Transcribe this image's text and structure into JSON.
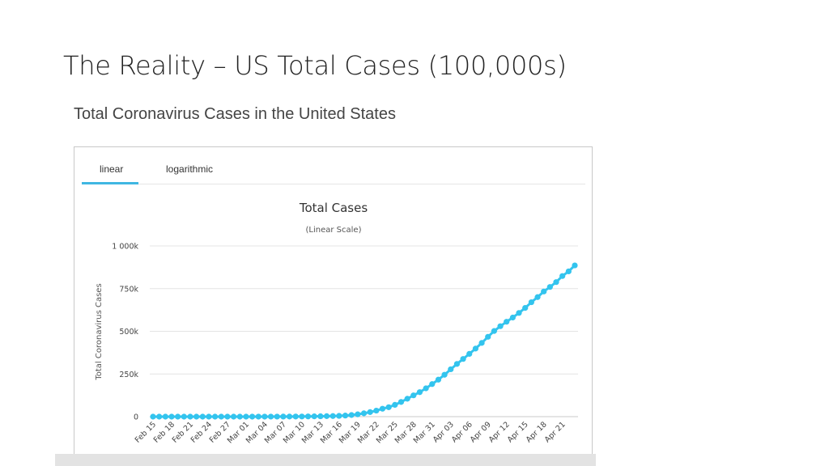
{
  "slide": {
    "title": "The Reality – US Total Cases (100,000s)"
  },
  "embed": {
    "heading": "Total Coronavirus Cases in the United States",
    "tabs": [
      {
        "label": "linear",
        "active": true
      },
      {
        "label": "logarithmic",
        "active": false
      }
    ]
  },
  "chart_data": {
    "type": "line",
    "title": "Total Cases",
    "subtitle": "(Linear Scale)",
    "ylabel": "Total Coronavirus Cases",
    "xlabel": "",
    "ylim": [
      0,
      1000000
    ],
    "y_ticks": [
      0,
      250000,
      500000,
      750000,
      1000000
    ],
    "y_tick_labels": [
      "0",
      "250k",
      "500k",
      "750k",
      "1 000k"
    ],
    "x_tick_labels": [
      "Feb 15",
      "Feb 18",
      "Feb 21",
      "Feb 24",
      "Feb 27",
      "Mar 01",
      "Mar 04",
      "Mar 07",
      "Mar 10",
      "Mar 13",
      "Mar 16",
      "Mar 19",
      "Mar 22",
      "Mar 25",
      "Mar 28",
      "Mar 31",
      "Apr 03",
      "Apr 06",
      "Apr 09",
      "Apr 12",
      "Apr 15",
      "Apr 18",
      "Apr 21"
    ],
    "grid": true,
    "line_color": "#33c4ee",
    "series": [
      {
        "x": [
          "Feb 15",
          "Feb 16",
          "Feb 17",
          "Feb 18",
          "Feb 19",
          "Feb 20",
          "Feb 21",
          "Feb 22",
          "Feb 23",
          "Feb 24",
          "Feb 25",
          "Feb 26",
          "Feb 27",
          "Feb 28",
          "Feb 29",
          "Mar 01",
          "Mar 02",
          "Mar 03",
          "Mar 04",
          "Mar 05",
          "Mar 06",
          "Mar 07",
          "Mar 08",
          "Mar 09",
          "Mar 10",
          "Mar 11",
          "Mar 12",
          "Mar 13",
          "Mar 14",
          "Mar 15",
          "Mar 16",
          "Mar 17",
          "Mar 18",
          "Mar 19",
          "Mar 20",
          "Mar 21",
          "Mar 22",
          "Mar 23",
          "Mar 24",
          "Mar 25",
          "Mar 26",
          "Mar 27",
          "Mar 28",
          "Mar 29",
          "Mar 30",
          "Mar 31",
          "Apr 01",
          "Apr 02",
          "Apr 03",
          "Apr 04",
          "Apr 05",
          "Apr 06",
          "Apr 07",
          "Apr 08",
          "Apr 09",
          "Apr 10",
          "Apr 11",
          "Apr 12",
          "Apr 13",
          "Apr 14",
          "Apr 15",
          "Apr 16",
          "Apr 17",
          "Apr 18",
          "Apr 19",
          "Apr 20",
          "Apr 21",
          "Apr 22",
          "Apr 23"
        ],
        "values": [
          15,
          15,
          15,
          15,
          15,
          15,
          35,
          35,
          35,
          53,
          57,
          60,
          60,
          62,
          70,
          75,
          100,
          120,
          160,
          230,
          340,
          440,
          540,
          700,
          1000,
          1300,
          1700,
          2200,
          2900,
          3500,
          4600,
          6400,
          9400,
          13700,
          19600,
          26700,
          35200,
          46400,
          55200,
          69200,
          86000,
          104900,
          124700,
          143500,
          165900,
          190700,
          216700,
          245400,
          277500,
          308800,
          337900,
          367800,
          398700,
          431800,
          467600,
          501700,
          529900,
          556000,
          580600,
          607600,
          637000,
          670400,
          700300,
          733000,
          759800,
          788100,
          823700,
          851000,
          886000
        ]
      }
    ]
  }
}
